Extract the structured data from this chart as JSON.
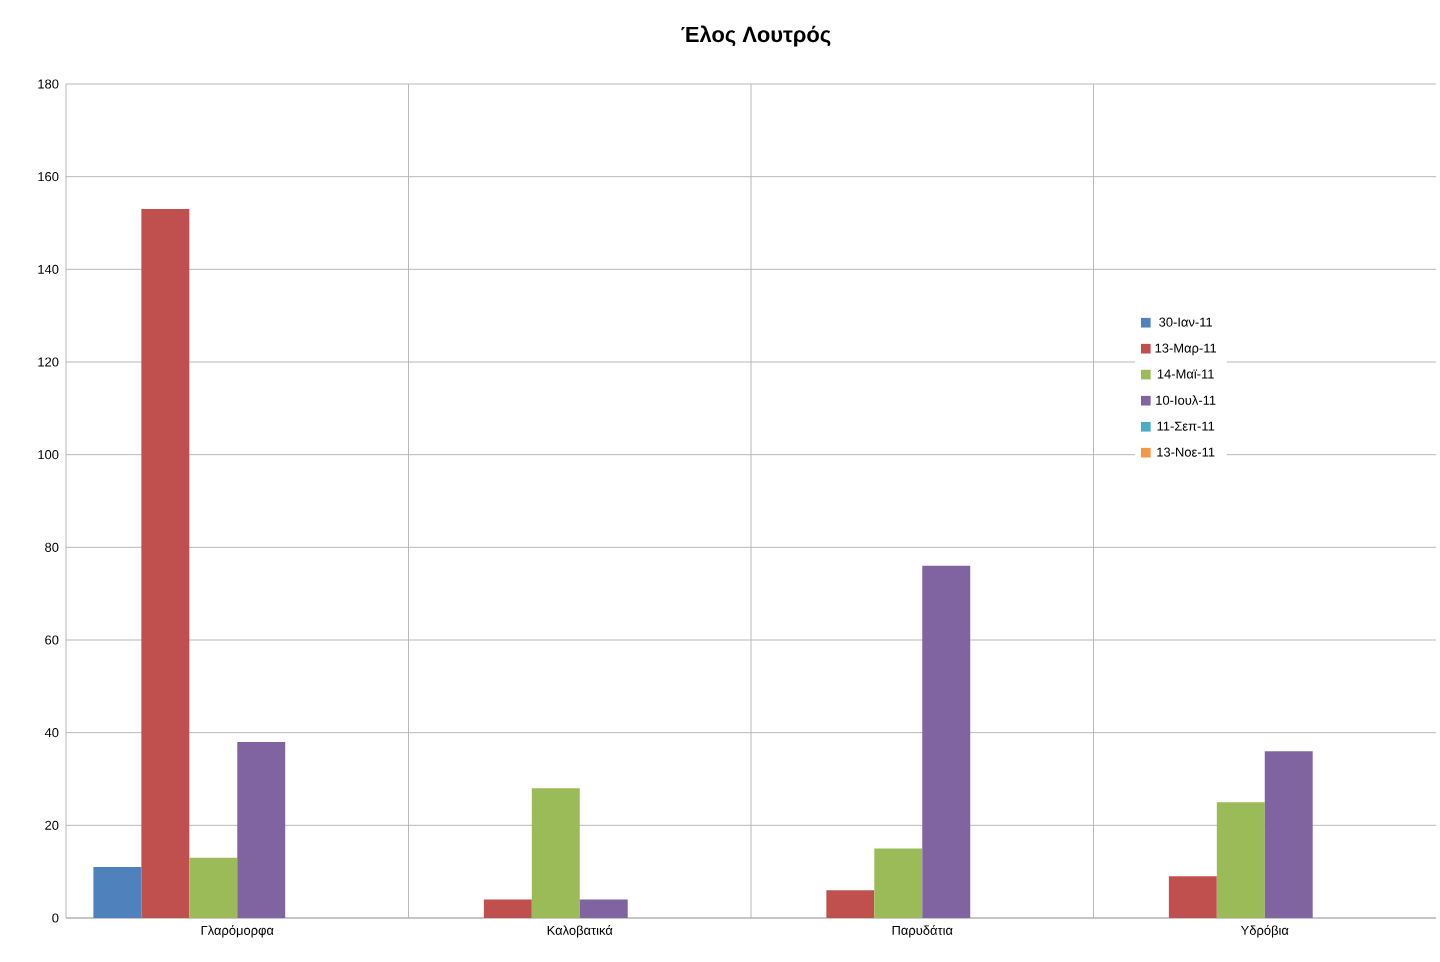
{
  "chart_data": {
    "type": "bar",
    "title": "Έλος Λουτρός",
    "categories": [
      "Γλαρόμορφα",
      "Καλοβατικά",
      "Παρυδάτια",
      "Υδρόβια"
    ],
    "series": [
      {
        "name": "30-Ιαν-11",
        "color": "#4f81bd",
        "values": [
          11,
          0,
          0,
          0
        ]
      },
      {
        "name": "13-Μαρ-11",
        "color": "#c0504d",
        "values": [
          153,
          4,
          6,
          9
        ]
      },
      {
        "name": "14-Μαϊ-11",
        "color": "#9bbb59",
        "values": [
          13,
          28,
          15,
          25
        ]
      },
      {
        "name": "10-Ιουλ-11",
        "color": "#8064a2",
        "values": [
          38,
          4,
          76,
          36
        ]
      },
      {
        "name": "11-Σεπ-11",
        "color": "#4bacc6",
        "values": [
          0,
          0,
          0,
          0
        ]
      },
      {
        "name": "13-Νοε-11",
        "color": "#f79646",
        "values": [
          0,
          0,
          0,
          0
        ]
      }
    ],
    "ylim": [
      0,
      180
    ],
    "yticks": [
      0,
      20,
      40,
      60,
      80,
      100,
      120,
      140,
      160,
      180
    ],
    "grid": true,
    "legend": "right"
  }
}
